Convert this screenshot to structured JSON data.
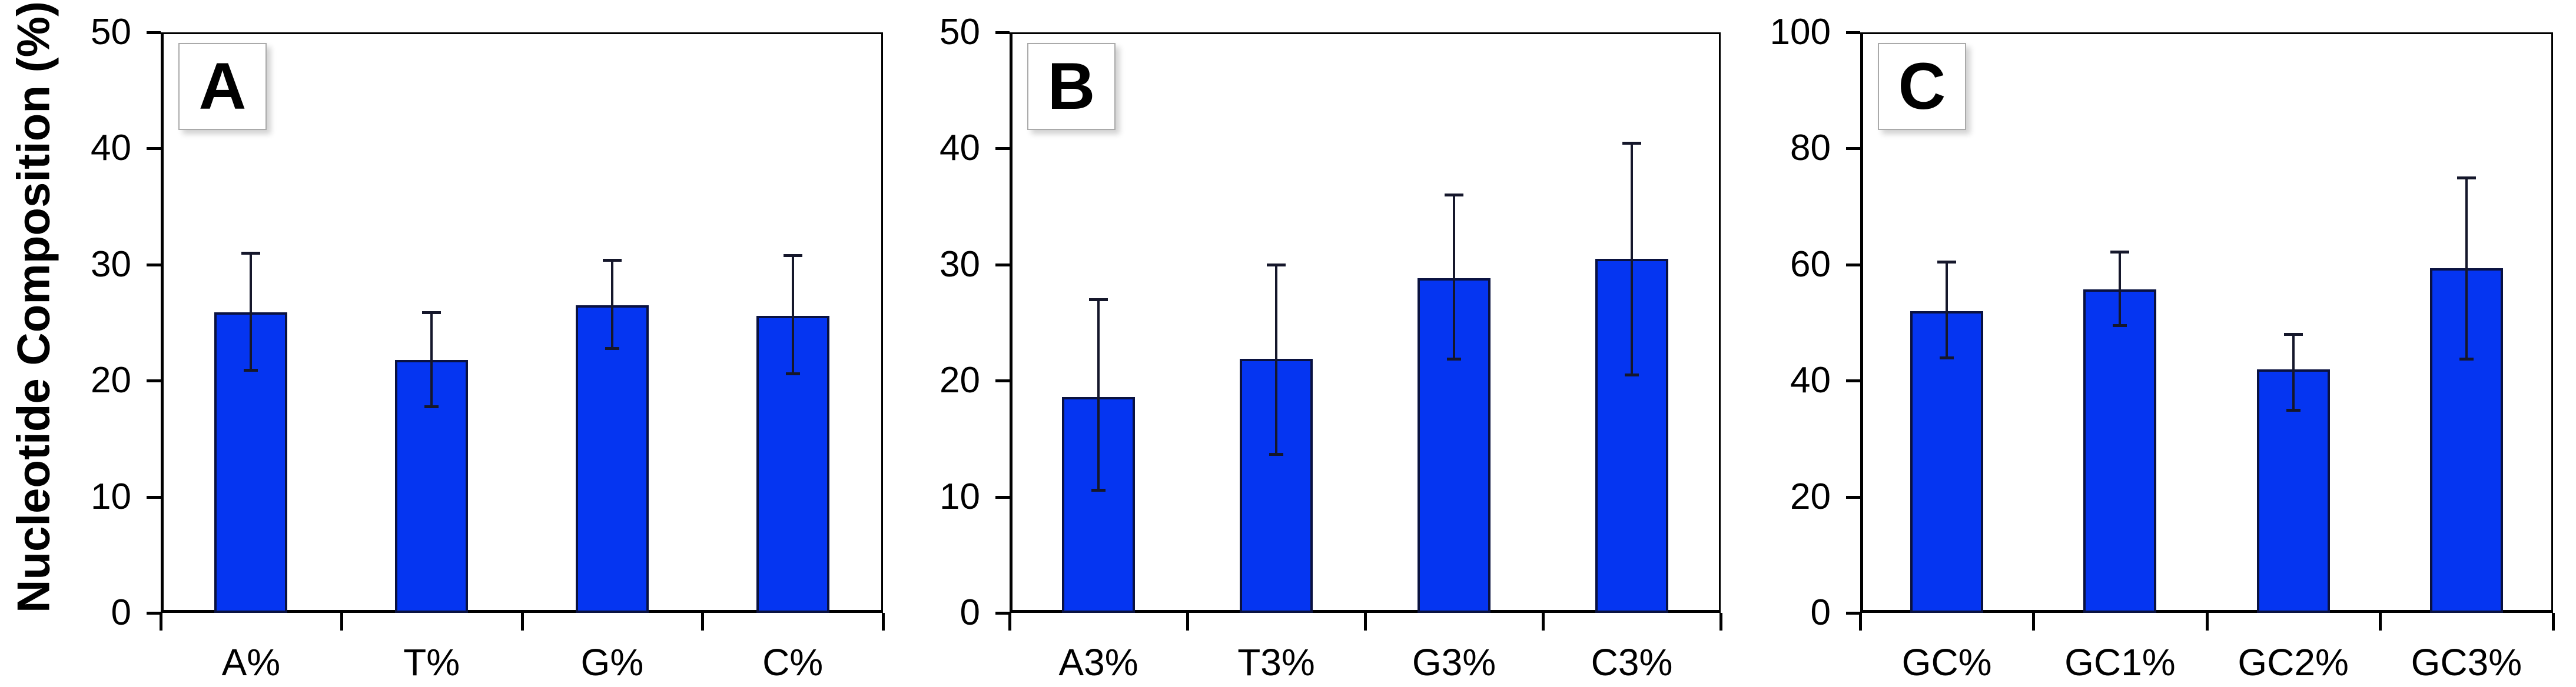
{
  "figure": {
    "y_axis_label": "Nucleotide Composition (%)",
    "bar_color": "#0535f1",
    "bar_border_color": "#0a1240",
    "error_bar_color": "#15172b",
    "frame_color": "#000000",
    "background_color": "#ffffff",
    "panel_labels": [
      "A",
      "B",
      "C"
    ]
  },
  "chart_data": [
    {
      "type": "bar",
      "panel_label": "A",
      "categories": [
        "A%",
        "T%",
        "G%",
        "C%"
      ],
      "values": [
        25.9,
        21.8,
        26.5,
        25.6
      ],
      "error_low": [
        20.9,
        17.8,
        22.8,
        20.6
      ],
      "error_high": [
        31.0,
        25.9,
        30.4,
        30.8
      ],
      "ylabel": "Nucleotide Composition (%)",
      "xlabel": "",
      "ylim": [
        0,
        50
      ],
      "yticks": [
        0,
        10,
        20,
        30,
        40,
        50
      ],
      "grid": false,
      "legend": "none"
    },
    {
      "type": "bar",
      "panel_label": "B",
      "categories": [
        "A3%",
        "T3%",
        "G3%",
        "C3%"
      ],
      "values": [
        18.6,
        21.9,
        28.8,
        30.5
      ],
      "error_low": [
        10.6,
        13.7,
        21.9,
        20.5
      ],
      "error_high": [
        27.0,
        30.0,
        36.0,
        40.5
      ],
      "ylabel": "",
      "xlabel": "",
      "ylim": [
        0,
        50
      ],
      "yticks": [
        0,
        10,
        20,
        30,
        40,
        50
      ],
      "grid": false,
      "legend": "none"
    },
    {
      "type": "bar",
      "panel_label": "C",
      "categories": [
        "GC%",
        "GC1%",
        "GC2%",
        "GC3%"
      ],
      "values": [
        52.0,
        55.7,
        41.9,
        59.4
      ],
      "error_low": [
        44.0,
        49.5,
        35.0,
        43.8
      ],
      "error_high": [
        60.5,
        62.2,
        48.0,
        75.0
      ],
      "ylabel": "",
      "xlabel": "",
      "ylim": [
        0,
        100
      ],
      "yticks": [
        0,
        20,
        40,
        60,
        80,
        100
      ],
      "grid": false,
      "legend": "none"
    }
  ]
}
